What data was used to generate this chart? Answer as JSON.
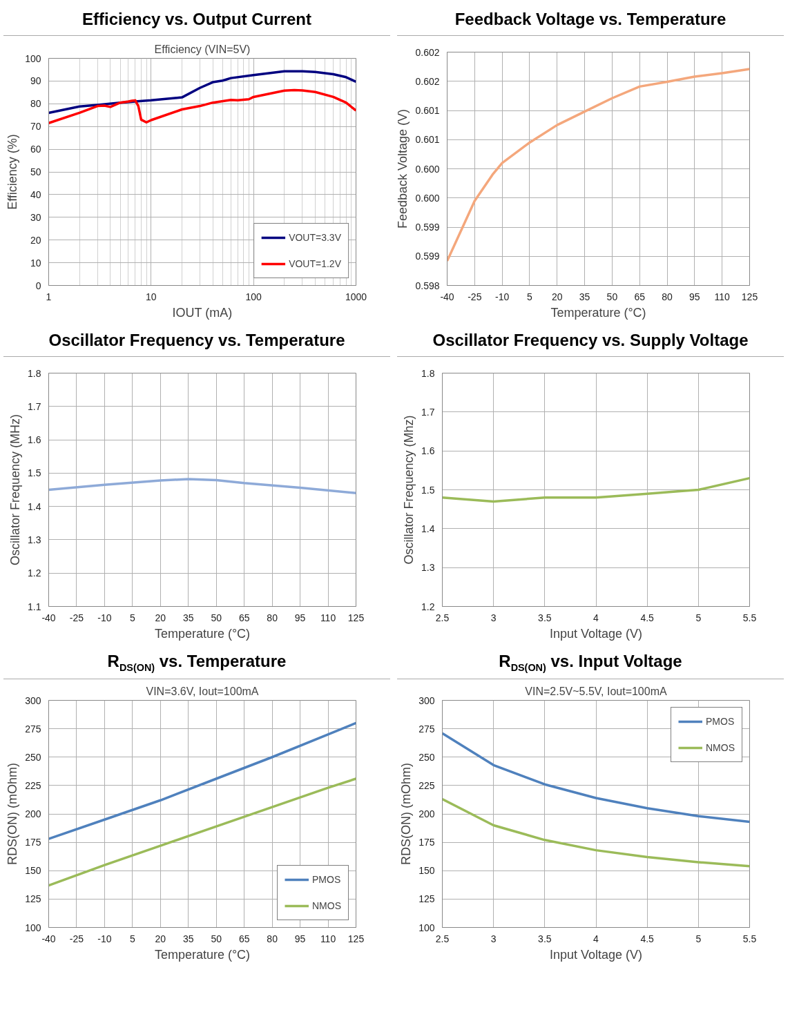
{
  "chart_data": [
    {
      "type": "line",
      "title": "Efficiency vs. Output Current",
      "subtitle": "Efficiency (VIN=5V)",
      "xlabel": "IOUT (mA)",
      "ylabel": "Efficiency (%)",
      "log": "x",
      "xlim": [
        1,
        1000
      ],
      "xticks": [
        1,
        10,
        100,
        1000
      ],
      "ylim": [
        0,
        100
      ],
      "yticks": [
        0,
        10,
        20,
        30,
        40,
        50,
        60,
        70,
        80,
        90,
        100
      ],
      "grid": true,
      "legend": "bottom right",
      "series": [
        {
          "name": "VOUT=3.3V",
          "color": "#000080",
          "x": [
            1,
            2,
            3,
            5,
            7,
            10,
            20,
            30,
            40,
            50,
            60,
            100,
            200,
            300,
            400,
            600,
            800,
            1000
          ],
          "values": [
            76,
            78.8,
            79.5,
            80.5,
            81,
            81.5,
            82.8,
            87,
            89.5,
            90.2,
            91.3,
            92.6,
            94.3,
            94.3,
            94,
            93,
            91.7,
            89.7
          ]
        },
        {
          "name": "VOUT=1.2V",
          "color": "#ff0000",
          "x": [
            1,
            2,
            3,
            3.5,
            4,
            5,
            6,
            6.5,
            7,
            7.5,
            8,
            9,
            10,
            20,
            30,
            40,
            60,
            70,
            90,
            100,
            200,
            250,
            300,
            400,
            600,
            800,
            1000
          ],
          "values": [
            71.5,
            76,
            79,
            79.2,
            78.6,
            80.5,
            81,
            81.3,
            81.5,
            79,
            73,
            71.8,
            72.8,
            77.5,
            79,
            80.5,
            81.7,
            81.5,
            82,
            83,
            85.8,
            86,
            85.9,
            85.2,
            83,
            80.5,
            77
          ]
        }
      ]
    },
    {
      "type": "line",
      "title": "Feedback Voltage vs. Temperature",
      "xlabel": "Temperature (°C)",
      "ylabel": "Feedback Voltage (V)",
      "xlim": [
        -40,
        125
      ],
      "xticks": [
        -40,
        -25,
        -10,
        5,
        20,
        35,
        50,
        65,
        80,
        95,
        110,
        125
      ],
      "ylim": [
        0.598,
        0.602
      ],
      "yticks": [
        0.598,
        {
          "value": 0.5985,
          "label": "0.599"
        },
        0.599,
        {
          "value": 0.5995,
          "label": "0.600"
        },
        {
          "value": 0.6,
          "label": "0.600"
        },
        {
          "value": 0.6005,
          "label": "0.601"
        },
        0.601,
        {
          "value": 0.6015,
          "label": "0.602"
        },
        0.602
      ],
      "grid": true,
      "series": [
        {
          "color": "#f4a77c",
          "x": [
            -40,
            -25,
            -15,
            -10,
            5,
            20,
            35,
            50,
            65,
            80,
            95,
            110,
            125
          ],
          "values": [
            0.59842,
            0.59945,
            0.59991,
            0.6001,
            0.60045,
            0.60075,
            0.60098,
            0.60121,
            0.60141,
            0.60149,
            0.60158,
            0.60164,
            0.60171
          ]
        }
      ]
    },
    {
      "type": "line",
      "title": "Oscillator Frequency vs. Temperature",
      "xlabel": "Temperature (°C)",
      "ylabel": "Oscillator Frequency (MHz)",
      "xlim": [
        -40,
        125
      ],
      "xticks": [
        -40,
        -25,
        -10,
        5,
        20,
        35,
        50,
        65,
        80,
        95,
        110,
        125
      ],
      "ylim": [
        1.1,
        1.8
      ],
      "yticks": [
        1.1,
        1.2,
        1.3,
        1.4,
        1.5,
        1.6,
        1.7,
        1.8
      ],
      "grid": true,
      "series": [
        {
          "color": "#8eaad8",
          "x": [
            -40,
            -10,
            20,
            35,
            50,
            65,
            95,
            125
          ],
          "values": [
            1.45,
            1.465,
            1.478,
            1.482,
            1.479,
            1.47,
            1.456,
            1.44
          ]
        }
      ]
    },
    {
      "type": "line",
      "title": "Oscillator Frequency vs. Supply Voltage",
      "xlabel": "Input Voltage (V)",
      "ylabel": "Oscillator Frequency (Mhz)",
      "xlim": [
        2.5,
        5.5
      ],
      "xticks": [
        2.5,
        3,
        3.5,
        4,
        4.5,
        5,
        5.5
      ],
      "ylim": [
        1.2,
        1.8
      ],
      "yticks": [
        1.2,
        1.3,
        1.4,
        1.5,
        1.6,
        1.7,
        1.8
      ],
      "grid": true,
      "series": [
        {
          "color": "#9bbb59",
          "x": [
            2.5,
            3,
            3.5,
            4,
            4.5,
            4.8,
            5,
            5.5
          ],
          "values": [
            1.48,
            1.47,
            1.48,
            1.48,
            1.49,
            1.496,
            1.5,
            1.53
          ]
        }
      ]
    },
    {
      "type": "line",
      "title": "R$_{DS(ON)}$ vs. Temperature",
      "subtitle": "VIN=3.6V, Iout=100mA",
      "xlabel": "Temperature (°C)",
      "ylabel": "RDS(ON) (mOhm)",
      "xlim": [
        -40,
        125
      ],
      "xticks": [
        -40,
        -25,
        -10,
        5,
        20,
        35,
        50,
        65,
        80,
        95,
        110,
        125
      ],
      "ylim": [
        100,
        300
      ],
      "yticks": [
        100,
        125,
        150,
        175,
        200,
        225,
        250,
        275,
        300
      ],
      "grid": true,
      "legend": "bottom right",
      "series": [
        {
          "name": "PMOS",
          "color": "#4f81bd",
          "x": [
            -40,
            -10,
            20,
            50,
            80,
            110,
            125
          ],
          "values": [
            178,
            195,
            212,
            231,
            250,
            270,
            280
          ]
        },
        {
          "name": "NMOS",
          "color": "#9bbb59",
          "x": [
            -40,
            -10,
            20,
            50,
            80,
            110,
            125
          ],
          "values": [
            137,
            155,
            172,
            189,
            206,
            223,
            231
          ]
        }
      ]
    },
    {
      "type": "line",
      "title": "R$_{DS(ON)}$ vs. Input Voltage",
      "subtitle": "VIN=2.5V~5.5V, Iout=100mA",
      "xlabel": "Input Voltage (V)",
      "ylabel": "RDS(ON) (mOhm)",
      "xlim": [
        2.5,
        5.5
      ],
      "xticks": [
        2.5,
        3,
        3.5,
        4,
        4.5,
        5,
        5.5
      ],
      "ylim": [
        100,
        300
      ],
      "yticks": [
        100,
        125,
        150,
        175,
        200,
        225,
        250,
        275,
        300
      ],
      "grid": true,
      "legend": "top right",
      "series": [
        {
          "name": "PMOS",
          "color": "#4f81bd",
          "x": [
            2.5,
            3,
            3.5,
            4,
            4.5,
            5,
            5.5
          ],
          "values": [
            271,
            243,
            226,
            214,
            205,
            198,
            193
          ]
        },
        {
          "name": "NMOS",
          "color": "#9bbb59",
          "x": [
            2.5,
            3,
            3.5,
            4,
            4.5,
            5,
            5.5
          ],
          "values": [
            213,
            190,
            177,
            168,
            162,
            157.5,
            154
          ]
        }
      ]
    }
  ]
}
